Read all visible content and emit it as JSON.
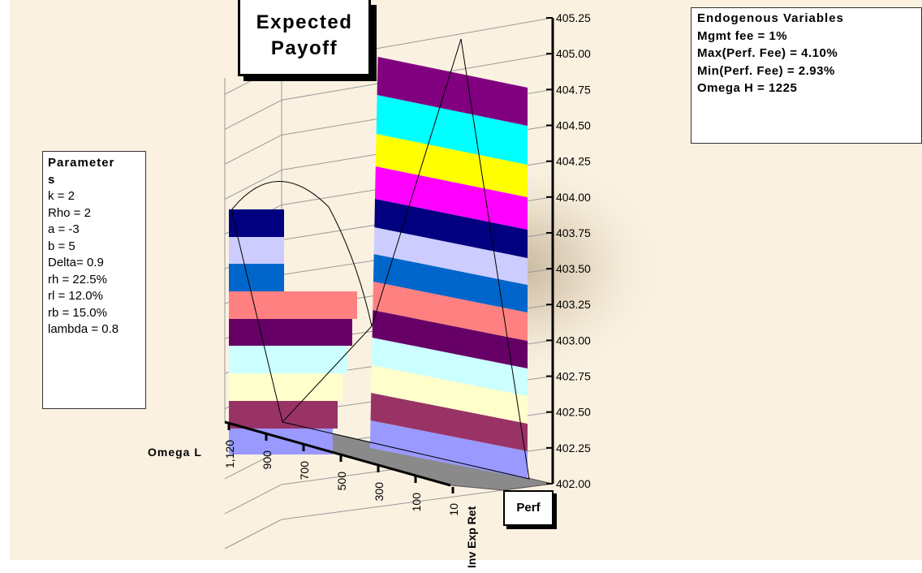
{
  "chart_data": {
    "type": "surface",
    "title_lines": [
      "Expected",
      "Payoff"
    ],
    "z_axis": {
      "ticks": [
        "405.25",
        "405.00",
        "404.75",
        "404.50",
        "404.25",
        "404.00",
        "403.75",
        "403.50",
        "403.25",
        "403.00",
        "402.75",
        "402.50",
        "402.25",
        "402.00"
      ],
      "range": [
        402.0,
        405.25
      ]
    },
    "omega_axis": {
      "label": "Omega L",
      "ticks": [
        "1,120",
        "900",
        "700",
        "500",
        "300",
        "100",
        "10"
      ]
    },
    "inv_axis_label": "Inv Exp Ret",
    "perf_label": "Perf",
    "band_colors": [
      "#9999ff",
      "#993366",
      "#ffffcc",
      "#ccffff",
      "#660066",
      "#ff8080",
      "#0066cc",
      "#ccccff",
      "#000080",
      "#ff00ff",
      "#ffff00",
      "#00ffff",
      "#800080"
    ]
  },
  "params": {
    "header_lines": [
      "Parameter",
      "s"
    ],
    "lines": [
      "k = 2",
      "Rho = 2",
      "a = -3",
      "b = 5",
      "Delta= 0.9",
      "rh = 22.5%",
      "rl  = 12.0%",
      "rb = 15.0%",
      "lambda = 0.8"
    ]
  },
  "endogenous": {
    "header": "Endogenous Variables",
    "lines": [
      "Mgmt fee = 1%",
      "Max(Perf. Fee) = 4.10%",
      "Min(Perf. Fee)  = 2.93%",
      "Omega H = 1225"
    ]
  }
}
